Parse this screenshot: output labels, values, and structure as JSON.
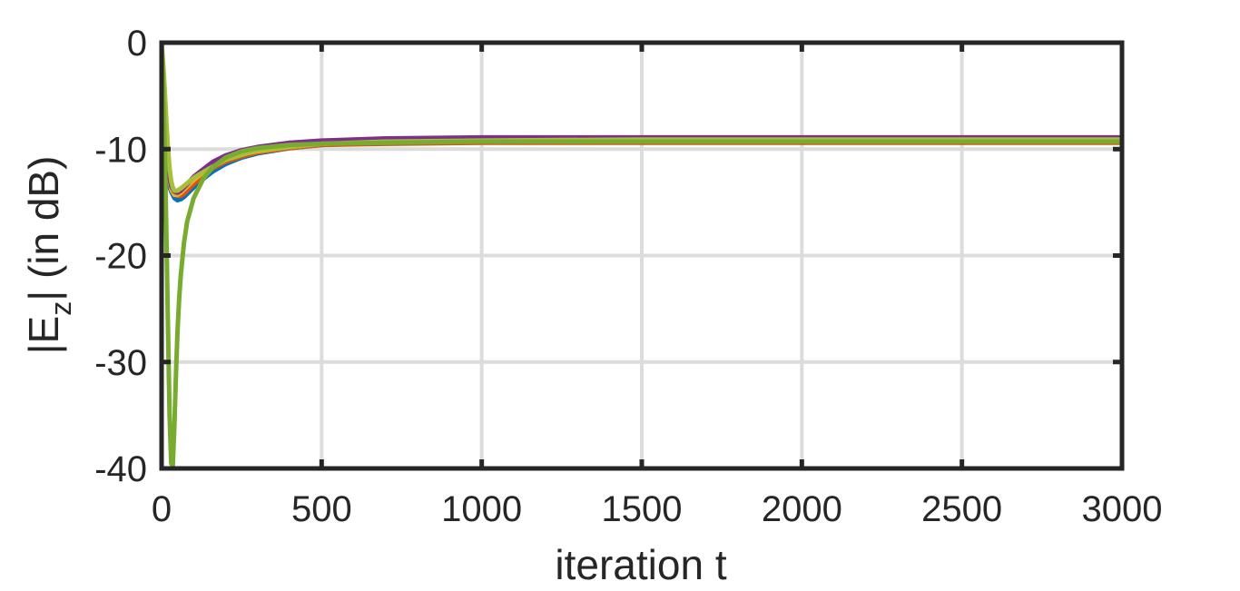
{
  "chart_data": {
    "type": "line",
    "title": "",
    "xlabel": "iteration t",
    "ylabel_main": "|E",
    "ylabel_sub": "z",
    "ylabel_tail": "| (in dB)",
    "xlim": [
      0,
      3000
    ],
    "ylim": [
      -40,
      0
    ],
    "xticks": [
      0,
      500,
      1000,
      1500,
      2000,
      2500,
      3000
    ],
    "xtick_labels": [
      "0",
      "500",
      "1000",
      "1500",
      "2000",
      "2500",
      "3000"
    ],
    "yticks": [
      0,
      -10,
      -20,
      -30,
      -40
    ],
    "ytick_labels": [
      "0",
      "-10",
      "-20",
      "-30",
      "-40"
    ],
    "grid": true,
    "legend": "none",
    "series": [
      {
        "color": "#0072BD",
        "x": [
          0,
          5,
          10,
          20,
          30,
          40,
          50,
          60,
          70,
          80,
          100,
          130,
          160,
          200,
          250,
          300,
          400,
          500,
          700,
          1000,
          1500,
          2000,
          2500,
          3000
        ],
        "y": [
          -11.5,
          -11.8,
          -12.3,
          -13.2,
          -14.0,
          -14.6,
          -14.8,
          -14.7,
          -14.5,
          -14.2,
          -13.6,
          -12.8,
          -12.1,
          -11.4,
          -10.8,
          -10.4,
          -9.9,
          -9.6,
          -9.4,
          -9.3,
          -9.3,
          -9.3,
          -9.3,
          -9.3
        ]
      },
      {
        "color": "#D95319",
        "x": [
          0,
          5,
          10,
          20,
          30,
          40,
          50,
          60,
          70,
          80,
          100,
          130,
          160,
          200,
          250,
          300,
          400,
          500,
          700,
          1000,
          1500,
          2000,
          2500,
          3000
        ],
        "y": [
          -11.0,
          -11.3,
          -11.8,
          -12.7,
          -13.5,
          -14.1,
          -14.4,
          -14.4,
          -14.2,
          -13.9,
          -13.3,
          -12.5,
          -11.8,
          -11.2,
          -10.7,
          -10.3,
          -9.9,
          -9.6,
          -9.5,
          -9.4,
          -9.4,
          -9.4,
          -9.4,
          -9.4
        ]
      },
      {
        "color": "#EDB120",
        "x": [
          0,
          10,
          20,
          30,
          40,
          50,
          60,
          70,
          80,
          100,
          130,
          160,
          200,
          250,
          300,
          400,
          500,
          700,
          1000,
          1500,
          2000,
          2500,
          3000
        ],
        "y": [
          -1.0,
          -8.0,
          -12.0,
          -13.8,
          -14.3,
          -14.3,
          -14.1,
          -13.8,
          -13.5,
          -12.9,
          -12.2,
          -11.6,
          -11.0,
          -10.5,
          -10.2,
          -9.8,
          -9.5,
          -9.3,
          -9.2,
          -9.2,
          -9.2,
          -9.2,
          -9.2
        ]
      },
      {
        "color": "#7E2F8E",
        "x": [
          0,
          10,
          20,
          30,
          40,
          50,
          60,
          70,
          80,
          100,
          130,
          160,
          200,
          250,
          300,
          400,
          500,
          700,
          1000,
          1500,
          2000,
          2500,
          3000
        ],
        "y": [
          -3.0,
          -8.5,
          -12.0,
          -13.5,
          -14.0,
          -14.1,
          -13.9,
          -13.6,
          -13.3,
          -12.6,
          -11.9,
          -11.2,
          -10.6,
          -10.1,
          -9.8,
          -9.4,
          -9.2,
          -9.0,
          -8.9,
          -8.9,
          -8.9,
          -8.9,
          -8.9
        ]
      },
      {
        "color": "#A8BF3A",
        "x": [
          0,
          5,
          10,
          15,
          20,
          25,
          30,
          35,
          40,
          50,
          60,
          80,
          100,
          150,
          200,
          300,
          500,
          700,
          1000,
          1500,
          2000,
          2500,
          3000
        ],
        "y": [
          0,
          -2.0,
          -4.5,
          -7.5,
          -10.0,
          -11.8,
          -13.0,
          -13.6,
          -13.9,
          -13.9,
          -13.7,
          -13.2,
          -12.7,
          -11.8,
          -11.0,
          -10.1,
          -9.5,
          -9.3,
          -9.2,
          -9.1,
          -9.1,
          -9.1,
          -9.1
        ]
      },
      {
        "color": "#77AC30",
        "x": [
          0,
          5,
          10,
          15,
          20,
          25,
          30,
          35,
          40,
          45,
          50,
          55,
          60,
          70,
          80,
          100,
          130,
          160,
          200,
          250,
          300,
          400,
          500,
          700,
          1000,
          1500,
          2000,
          2500,
          3000
        ],
        "y": [
          0,
          -4.0,
          -10.0,
          -18.0,
          -27.0,
          -35.0,
          -39.5,
          -39.8,
          -36.0,
          -31.0,
          -27.0,
          -24.0,
          -21.8,
          -18.8,
          -16.8,
          -14.6,
          -12.8,
          -11.7,
          -10.8,
          -10.2,
          -9.9,
          -9.6,
          -9.5,
          -9.4,
          -9.3,
          -9.3,
          -9.3,
          -9.3,
          -9.3
        ]
      }
    ]
  }
}
